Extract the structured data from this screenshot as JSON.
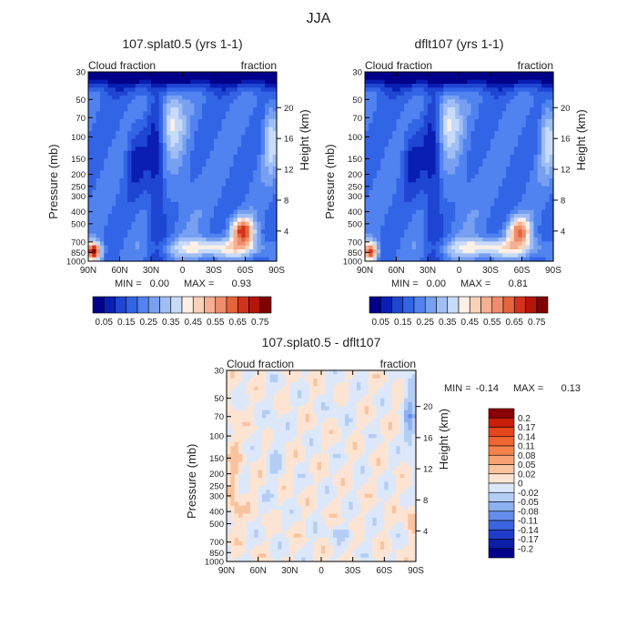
{
  "figure_title": "JJA",
  "chart_data": [
    {
      "type": "heatmap",
      "title": "107.splat0.5 (yrs 1-1)",
      "left_label": "Cloud fraction",
      "right_label": "fraction",
      "ylabel": "Pressure (mb)",
      "y2label": "Height (km)",
      "x_ticks": [
        "90N",
        "60N",
        "30N",
        "0",
        "30S",
        "60S",
        "90S"
      ],
      "y_ticks": [
        "30",
        "50",
        "70",
        "100",
        "150",
        "200",
        "250",
        "300",
        "400",
        "500",
        "700",
        "850",
        "1000"
      ],
      "height_ticks": [
        "20",
        "16",
        "12",
        "8",
        "4"
      ],
      "stats": {
        "min_label": "MIN =",
        "min": "0.00",
        "max_label": "MAX =",
        "max": "0.93"
      },
      "colorbar": {
        "levels": [
          "0.05",
          "0.15",
          "0.25",
          "0.35",
          "0.45",
          "0.55",
          "0.65",
          "0.75"
        ],
        "colors": [
          "#00008a",
          "#0a1eb4",
          "#1e46d2",
          "#3264e6",
          "#5082f0",
          "#78a0f0",
          "#a0bef5",
          "#c8dcfa",
          "#fff0e6",
          "#fad2b9",
          "#f5af91",
          "#f08c6e",
          "#e6643c",
          "#d2321e",
          "#b4140a",
          "#820000"
        ]
      }
    },
    {
      "type": "heatmap",
      "title": "dflt107 (yrs 1-1)",
      "left_label": "Cloud fraction",
      "right_label": "fraction",
      "ylabel": "Pressure (mb)",
      "y2label": "Height (km)",
      "x_ticks": [
        "90N",
        "60N",
        "30N",
        "0",
        "30S",
        "60S",
        "90S"
      ],
      "y_ticks": [
        "30",
        "50",
        "70",
        "100",
        "150",
        "200",
        "250",
        "300",
        "400",
        "500",
        "700",
        "850",
        "1000"
      ],
      "height_ticks": [
        "20",
        "16",
        "12",
        "8",
        "4"
      ],
      "stats": {
        "min_label": "MIN =",
        "min": "0.00",
        "max_label": "MAX =",
        "max": "0.81"
      },
      "colorbar": {
        "levels": [
          "0.05",
          "0.15",
          "0.25",
          "0.35",
          "0.45",
          "0.55",
          "0.65",
          "0.75"
        ],
        "colors": [
          "#00008a",
          "#0a1eb4",
          "#1e46d2",
          "#3264e6",
          "#5082f0",
          "#78a0f0",
          "#a0bef5",
          "#c8dcfa",
          "#fff0e6",
          "#fad2b9",
          "#f5af91",
          "#f08c6e",
          "#e6643c",
          "#d2321e",
          "#b4140a",
          "#820000"
        ]
      }
    },
    {
      "type": "heatmap",
      "title": "107.splat0.5 - dflt107",
      "left_label": "Cloud fraction",
      "right_label": "fraction",
      "ylabel": "Pressure (mb)",
      "y2label": "Height (km)",
      "x_ticks": [
        "90N",
        "60N",
        "30N",
        "0",
        "30S",
        "60S",
        "90S"
      ],
      "y_ticks": [
        "30",
        "50",
        "70",
        "100",
        "150",
        "200",
        "250",
        "300",
        "400",
        "500",
        "700",
        "850",
        "1000"
      ],
      "height_ticks": [
        "20",
        "16",
        "12",
        "8",
        "4"
      ],
      "stats": {
        "min_label": "MIN =",
        "min": "-0.14",
        "max_label": "MAX =",
        "max": "0.13"
      },
      "colorbar": {
        "levels": [
          "0.2",
          "0.17",
          "0.14",
          "0.11",
          "0.08",
          "0.05",
          "0.02",
          "0",
          "-0.02",
          "-0.05",
          "-0.08",
          "-0.11",
          "-0.14",
          "-0.17",
          "-0.2"
        ],
        "colors": [
          "#8b0000",
          "#c81e0a",
          "#e6461e",
          "#f06432",
          "#f5824b",
          "#f8a373",
          "#fac39f",
          "#fde4d2",
          "#dce8fa",
          "#b4cdf5",
          "#8cb0f0",
          "#648cea",
          "#3c64e0",
          "#1e3cc8",
          "#0a1eaa",
          "#00008a"
        ]
      }
    }
  ]
}
